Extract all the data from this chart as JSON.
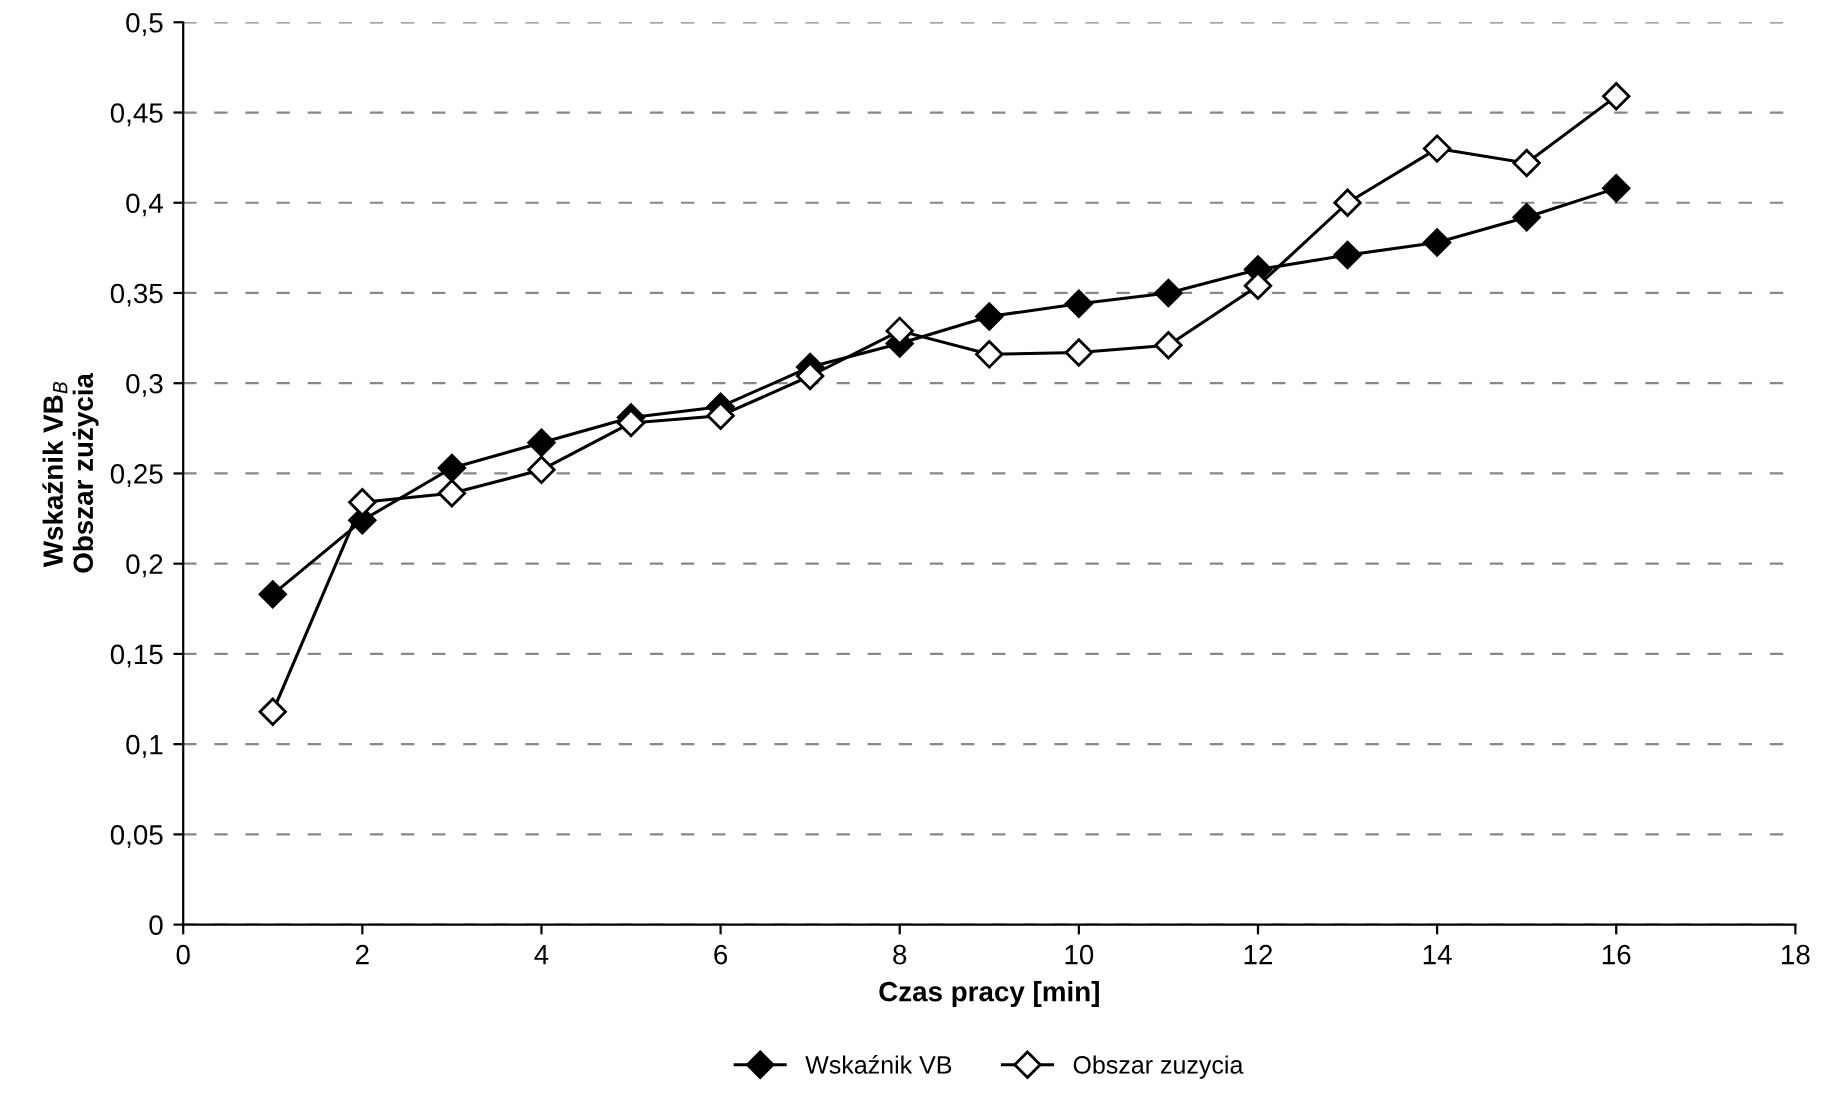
{
  "chart_data": {
    "type": "line",
    "xlabel": "Czas pracy [min]",
    "ylabel": "Wskaźnik VB$_{B}$\nObszar zużycia",
    "x": [
      1,
      2,
      3,
      4,
      5,
      6,
      7,
      8,
      9,
      10,
      11,
      12,
      13,
      14,
      15,
      16
    ],
    "series": [
      {
        "name": "Wskaźnik VB",
        "color": "#000000",
        "marker": "diamond",
        "values": [
          0.183,
          0.224,
          0.253,
          0.267,
          0.281,
          0.287,
          0.309,
          0.322,
          0.337,
          0.344,
          0.35,
          0.363,
          0.371,
          0.378,
          0.392,
          0.408
        ]
      },
      {
        "name": "Obszar zuzycia",
        "color": "#000000",
        "marker": "diamond_open",
        "values": [
          0.118,
          0.234,
          0.239,
          0.252,
          0.278,
          0.282,
          0.304,
          0.329,
          0.316,
          0.317,
          0.321,
          0.354,
          0.4,
          0.43,
          0.422,
          0.459
        ]
      }
    ],
    "xlim": [
      0,
      18
    ],
    "xticks": [
      0,
      2,
      4,
      6,
      8,
      10,
      12,
      14,
      16,
      18
    ],
    "ylim": [
      0,
      0.5
    ],
    "yticks": [
      {
        "value": 0,
        "label": "0"
      },
      {
        "value": 0.05,
        "label": "0,05"
      },
      {
        "value": 0.1,
        "label": "0,1"
      },
      {
        "value": 0.15,
        "label": "0,15"
      },
      {
        "value": 0.2,
        "label": "0,2"
      },
      {
        "value": 0.25,
        "label": "0,25"
      },
      {
        "value": 0.3,
        "label": "0,3"
      },
      {
        "value": 0.35,
        "label": "0,35"
      },
      {
        "value": 0.4,
        "label": "0,4"
      },
      {
        "value": 0.45,
        "label": "0,45"
      },
      {
        "value": 0.5,
        "label": "0,5"
      }
    ],
    "grid": "y",
    "legend": "bottom",
    "line_style": "solid"
  }
}
